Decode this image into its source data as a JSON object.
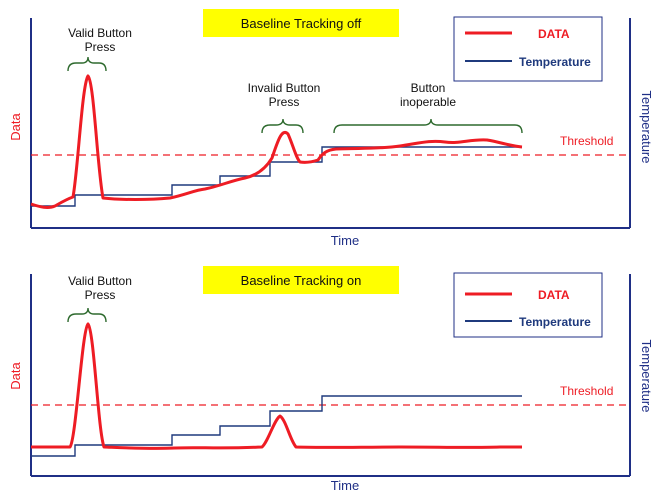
{
  "colors": {
    "data": "#ee1c24",
    "temperature": "#1f3a7d",
    "axis": "#1f2f86",
    "banner": "#ffff00",
    "brace": "#2e6a2e",
    "threshold": "#ee1c24"
  },
  "panels": [
    {
      "banner": "Baseline Tracking off",
      "ylabel_left": "Data",
      "ylabel_right": "Temperature",
      "xlabel": "Time",
      "threshold_label": "Threshold",
      "legend": {
        "data": "DATA",
        "temperature": "Temperature"
      },
      "annotations": [
        {
          "line1": "Valid Button",
          "line2": "Press"
        },
        {
          "line1": "Invalid Button",
          "line2": "Press"
        },
        {
          "line1": "Button",
          "line2": "inoperable"
        }
      ]
    },
    {
      "banner": "Baseline Tracking on",
      "ylabel_left": "Data",
      "ylabel_right": "Temperature",
      "xlabel": "Time",
      "threshold_label": "Threshold",
      "legend": {
        "data": "DATA",
        "temperature": "Temperature"
      },
      "annotations": [
        {
          "line1": "Valid Button",
          "line2": "Press"
        }
      ]
    }
  ]
}
